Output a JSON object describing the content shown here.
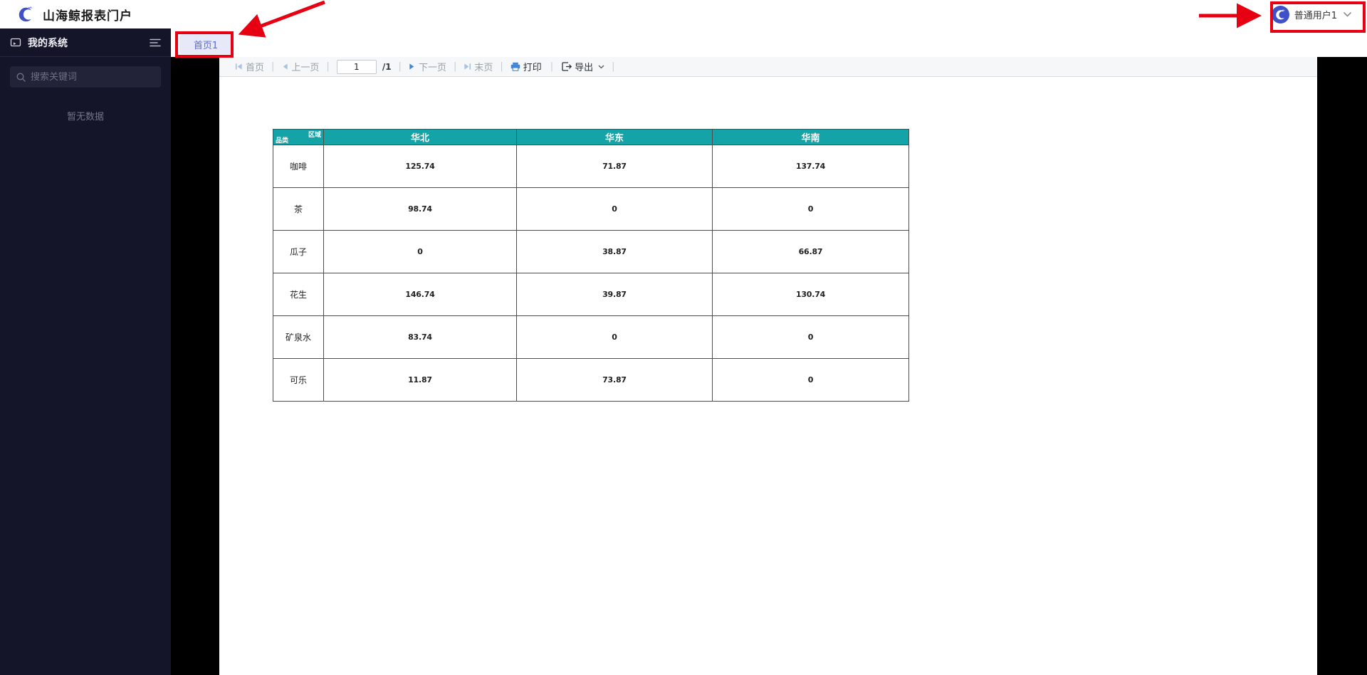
{
  "header": {
    "title": "山海鲸报表门户",
    "user": {
      "name": "普通用户1"
    }
  },
  "sidebar": {
    "title": "我的系统",
    "search_placeholder": "搜索关键词",
    "empty_text": "暂无数据"
  },
  "tabs": [
    {
      "label": "首页1",
      "active": true
    }
  ],
  "toolbar": {
    "first_label": "首页",
    "prev_label": "上一页",
    "page_value": "1",
    "page_total": "/1",
    "next_label": "下一页",
    "last_label": "末页",
    "print_label": "打印",
    "export_label": "导出"
  },
  "report_table": {
    "corner_top_right": "区域",
    "corner_bottom_left": "品类",
    "columns": [
      "华北",
      "华东",
      "华南"
    ],
    "rows": [
      {
        "label": "咖啡",
        "values": [
          "125.74",
          "71.87",
          "137.74"
        ]
      },
      {
        "label": "茶",
        "values": [
          "98.74",
          "0",
          "0"
        ]
      },
      {
        "label": "瓜子",
        "values": [
          "0",
          "38.87",
          "66.87"
        ]
      },
      {
        "label": "花生",
        "values": [
          "146.74",
          "39.87",
          "130.74"
        ]
      },
      {
        "label": "矿泉水",
        "values": [
          "83.74",
          "0",
          "0"
        ]
      },
      {
        "label": "可乐",
        "values": [
          "11.87",
          "73.87",
          "0"
        ]
      }
    ]
  },
  "colors": {
    "table_header_teal": "#14A3A6",
    "annotation_red": "#E60012",
    "sidebar_bg": "#15152A",
    "tab_bg": "#E7E9F8",
    "tab_text": "#5B6CD6",
    "brand_blue": "#4050C8",
    "toolbar_icon_blue": "#3F86D8",
    "toolbar_icon_disabled": "#A9C2E4"
  }
}
